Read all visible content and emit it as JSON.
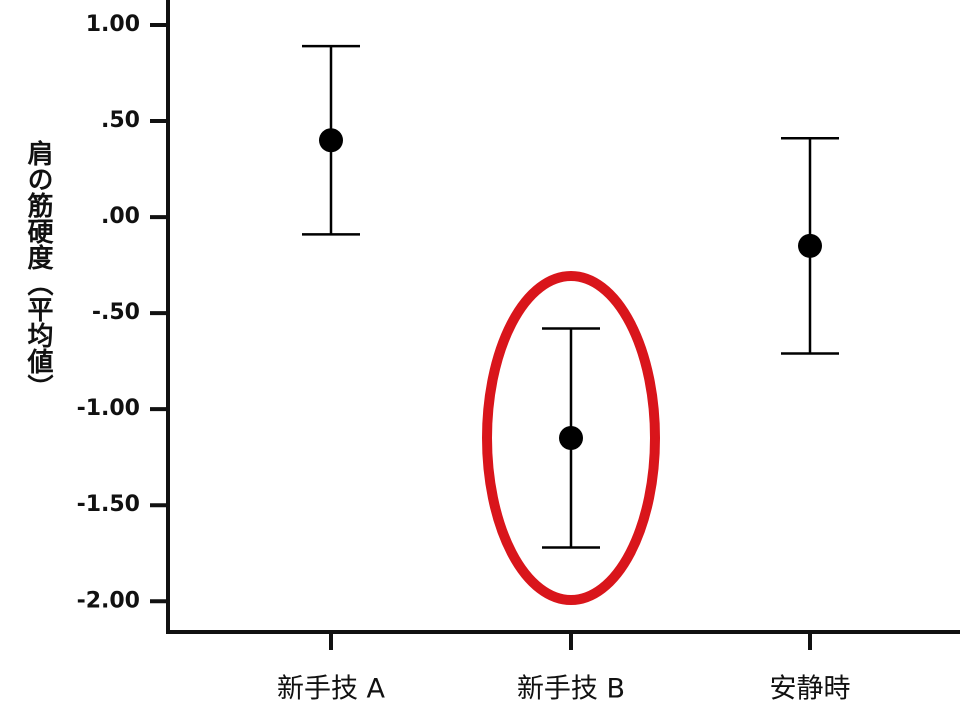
{
  "chart_data": {
    "type": "errorbar",
    "y_label": "肩の筋硬度（平均値）",
    "categories": [
      "新手技 A",
      "新手技 B",
      "安静時"
    ],
    "values": [
      0.4,
      -1.15,
      -0.15
    ],
    "errors": [
      0.49,
      0.57,
      0.56
    ],
    "color": "#000000",
    "ylim": [
      -2.16,
      1.13
    ],
    "yticks": [
      {
        "value": 1,
        "label": "1.00"
      },
      {
        "value": 0.5,
        "label": ".50"
      },
      {
        "value": 0,
        "label": ".00"
      },
      {
        "value": -0.5,
        "label": "-.50"
      },
      {
        "value": -1,
        "label": "-1.00"
      },
      {
        "value": -1.5,
        "label": "-1.50"
      },
      {
        "value": -2,
        "label": "-2.00"
      }
    ],
    "grid": false
  }
}
